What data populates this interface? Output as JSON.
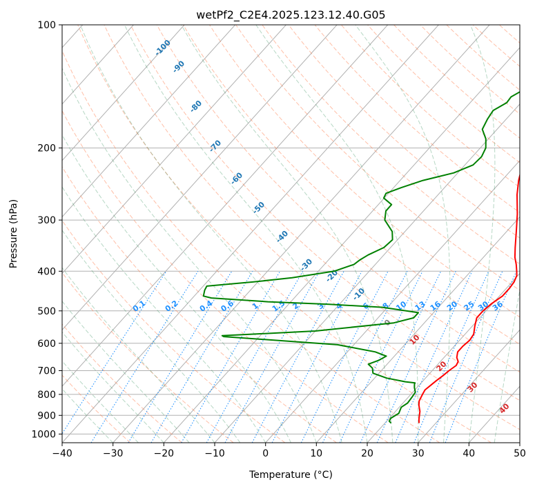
{
  "chart_data": {
    "type": "line",
    "diagram": "skew-T log-P",
    "title": "wetPf2_C2E4.2025.123.12.40.G05",
    "xlabel": "Temperature (°C)",
    "ylabel": "Pressure (hPa)",
    "xlim": [
      -40,
      50
    ],
    "ylim": [
      1050,
      100
    ],
    "y_scale": "log",
    "x_ticks": [
      -40,
      -30,
      -20,
      -10,
      0,
      10,
      20,
      30,
      40,
      50
    ],
    "y_ticks": [
      100,
      200,
      300,
      400,
      500,
      600,
      700,
      800,
      900,
      1000
    ],
    "grid": true,
    "colors": {
      "temperature": "#ff0000",
      "dewpoint": "#008000",
      "dry_adiabat": "#ff7f50",
      "moist_adiabat": "#2e8b57",
      "mixing_ratio": "#1e90ff",
      "label_blue": "#1f77b4",
      "label_red": "#d62728",
      "label_gray": "#808080",
      "grid": "#b0b0b0"
    },
    "series": [
      {
        "role": "temperature",
        "points": [
          [
            26.7,
            940
          ],
          [
            26.0,
            920
          ],
          [
            24.8,
            880
          ],
          [
            23.5,
            850
          ],
          [
            22.8,
            830
          ],
          [
            22.3,
            800
          ],
          [
            22.0,
            780
          ],
          [
            22.3,
            760
          ],
          [
            22.6,
            740
          ],
          [
            23.0,
            720
          ],
          [
            23.3,
            700
          ],
          [
            23.8,
            680
          ],
          [
            23.5,
            665
          ],
          [
            22.5,
            650
          ],
          [
            21.7,
            630
          ],
          [
            21.7,
            610
          ],
          [
            22.0,
            590
          ],
          [
            21.7,
            570
          ],
          [
            20.5,
            545
          ],
          [
            19.4,
            520
          ],
          [
            19.4,
            500
          ],
          [
            19.8,
            480
          ],
          [
            20.6,
            460
          ],
          [
            20.6,
            440
          ],
          [
            20.4,
            425
          ],
          [
            19.8,
            410
          ],
          [
            19.0,
            400
          ],
          [
            17.7,
            385
          ],
          [
            16.2,
            370
          ],
          [
            14.5,
            350
          ],
          [
            11.9,
            320
          ],
          [
            9.0,
            290
          ],
          [
            5.5,
            260
          ],
          [
            3.3,
            240
          ],
          [
            1.3,
            220
          ],
          [
            -0.7,
            200
          ],
          [
            -3.6,
            170
          ],
          [
            -5.8,
            150
          ],
          [
            -7.3,
            140
          ],
          [
            -8.0,
            135
          ],
          [
            -8.1,
            130
          ],
          [
            -7.4,
            125
          ],
          [
            -6.8,
            120
          ],
          [
            -5.5,
            114
          ],
          [
            -4.9,
            110
          ],
          [
            -4.6,
            106
          ],
          [
            -4.1,
            100
          ]
        ]
      },
      {
        "role": "dewpoint",
        "points": [
          [
            21.2,
            940
          ],
          [
            20.5,
            930
          ],
          [
            20.3,
            915
          ],
          [
            21.0,
            890
          ],
          [
            20.4,
            860
          ],
          [
            20.9,
            840
          ],
          [
            20.7,
            810
          ],
          [
            20.5,
            790
          ],
          [
            19.5,
            770
          ],
          [
            18.9,
            755
          ],
          [
            18.8,
            750
          ],
          [
            16.7,
            745
          ],
          [
            12.4,
            730
          ],
          [
            8.8,
            710
          ],
          [
            7.8,
            690
          ],
          [
            6.3,
            675
          ],
          [
            7.7,
            660
          ],
          [
            8.4,
            645
          ],
          [
            5.5,
            630
          ],
          [
            -3.2,
            605
          ],
          [
            -27.0,
            578
          ],
          [
            -27.5,
            575
          ],
          [
            -10.0,
            560
          ],
          [
            4.0,
            535
          ],
          [
            7.0,
            520
          ],
          [
            7.0,
            505
          ],
          [
            -1.0,
            490
          ],
          [
            -12.0,
            482
          ],
          [
            -24.5,
            475
          ],
          [
            -36.3,
            465
          ],
          [
            -38.2,
            460
          ],
          [
            -39.0,
            445
          ],
          [
            -39.3,
            435
          ],
          [
            -31.0,
            425
          ],
          [
            -24.0,
            415
          ],
          [
            -16.9,
            400
          ],
          [
            -14.2,
            385
          ],
          [
            -13.8,
            375
          ],
          [
            -13.1,
            365
          ],
          [
            -11.3,
            350
          ],
          [
            -11.0,
            335
          ],
          [
            -12.5,
            320
          ],
          [
            -16.0,
            300
          ],
          [
            -17.4,
            285
          ],
          [
            -17.4,
            275
          ],
          [
            -20.1,
            265
          ],
          [
            -20.5,
            258
          ],
          [
            -18.5,
            250
          ],
          [
            -15.5,
            240
          ],
          [
            -10.8,
            230
          ],
          [
            -8.4,
            220
          ],
          [
            -8.2,
            210
          ],
          [
            -8.9,
            200
          ],
          [
            -10.5,
            190
          ],
          [
            -12.9,
            180
          ],
          [
            -13.7,
            170
          ],
          [
            -14.1,
            162
          ],
          [
            -12.8,
            155
          ],
          [
            -13.0,
            150
          ],
          [
            -12.0,
            145
          ],
          [
            -9.2,
            140
          ],
          [
            -8.8,
            135
          ],
          [
            -8.8,
            125
          ],
          [
            -8.6,
            120
          ],
          [
            -8.0,
            115
          ],
          [
            -6.9,
            110
          ],
          [
            -6.0,
            106
          ],
          [
            -4.5,
            103
          ],
          [
            -3.5,
            100
          ]
        ]
      }
    ],
    "dry_adiabat_labels": [
      "-100",
      "-90",
      "-80",
      "-70",
      "-60",
      "-50",
      "-40",
      "-30",
      "-20",
      "-10",
      "0",
      "10",
      "20",
      "30",
      "40"
    ],
    "mixing_ratio_labels": [
      "0.1",
      "0.2",
      "0.4",
      "0.6",
      "1",
      "1.5",
      "2",
      "3",
      "4",
      "6",
      "8",
      "10",
      "13",
      "16",
      "20",
      "25",
      "30",
      "36"
    ]
  }
}
